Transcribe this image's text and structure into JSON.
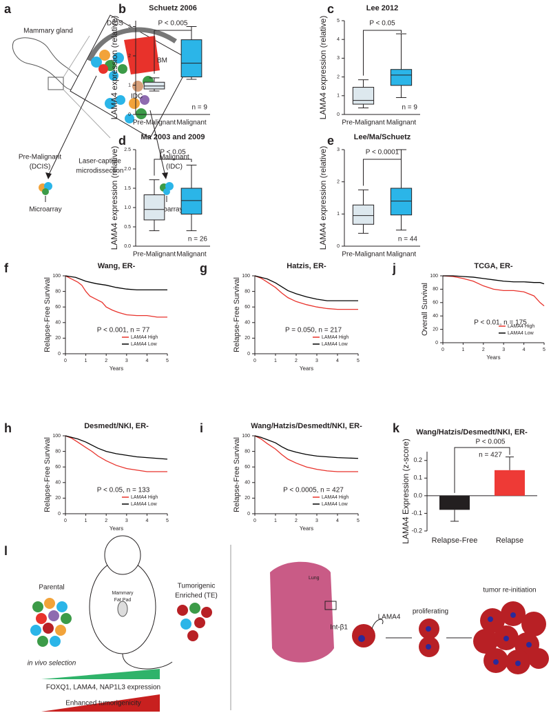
{
  "panel_labels": [
    "a",
    "b",
    "c",
    "d",
    "e",
    "f",
    "g",
    "j",
    "h",
    "i",
    "k",
    "l"
  ],
  "figure_a": {
    "labels": [
      "Mammary gland",
      "DCIS",
      "BM",
      "IDC",
      "Pre-Malignant",
      "(DCIS)",
      "Laser-capture",
      "microdissection",
      "Malignant",
      "(IDC)",
      "Microarray",
      "Microarray"
    ]
  },
  "figure_l": {
    "labels": [
      "Parental",
      "Mammary",
      "Fat Pad",
      "Tumorigenic",
      "Enriched (TE)",
      "in vivo selection",
      "FOXQ1, LAMA4, NAP1L3 expression",
      "Enhanced tumorigenicity",
      "Lung",
      "LAMA4",
      "Int-β1",
      "proliferating",
      "tumor re-initiation"
    ]
  },
  "chart_data": [
    {
      "type": "box",
      "title": "Schuetz 2006",
      "ylabel": "LAMA4 expression (relative)",
      "categories": [
        "Pre-Malignant",
        "Malignant"
      ],
      "boxes": [
        {
          "min": 0.8,
          "q1": 0.87,
          "median": 0.97,
          "q3": 1.1,
          "max": 1.25,
          "color": "#dde8ee"
        },
        {
          "min": 1.2,
          "q1": 1.28,
          "median": 1.75,
          "q3": 2.55,
          "max": 3.0,
          "color": "#2bb5e8"
        }
      ],
      "ylim": [
        0,
        3.2
      ],
      "yticks": [
        0,
        1,
        2,
        3
      ],
      "annotations": [
        "P < 0.005",
        "n = 9"
      ]
    },
    {
      "type": "box",
      "title": "Lee 2012",
      "ylabel": "LAMA4 expression (relative)",
      "categories": [
        "Pre-Malignant",
        "Malignant"
      ],
      "boxes": [
        {
          "min": 0.35,
          "q1": 0.55,
          "median": 0.75,
          "q3": 1.45,
          "max": 1.85,
          "color": "#dde8ee"
        },
        {
          "min": 0.9,
          "q1": 1.55,
          "median": 2.1,
          "q3": 2.4,
          "max": 4.3,
          "color": "#2bb5e8"
        }
      ],
      "ylim": [
        0,
        5
      ],
      "yticks": [
        0,
        1,
        2,
        3,
        4,
        5
      ],
      "annotations": [
        "P < 0.05",
        "n = 9"
      ]
    },
    {
      "type": "box",
      "title": "Ma 2003 and 2009",
      "ylabel": "LAMA4 expression (relative)",
      "categories": [
        "Pre-Malignant",
        "Malignant"
      ],
      "boxes": [
        {
          "min": 0.4,
          "q1": 0.68,
          "median": 0.95,
          "q3": 1.33,
          "max": 1.72,
          "color": "#dde8ee"
        },
        {
          "min": 0.4,
          "q1": 0.83,
          "median": 1.18,
          "q3": 1.5,
          "max": 2.1,
          "color": "#2bb5e8"
        }
      ],
      "ylim": [
        0,
        2.5
      ],
      "yticks": [
        {
          "value": 0,
          "label": "0.0"
        },
        0.5,
        {
          "value": 1,
          "label": "1.0"
        },
        1.5,
        {
          "value": 2,
          "label": "2.0"
        },
        2.5
      ],
      "annotations": [
        "P < 0.05",
        "n = 26"
      ]
    },
    {
      "type": "box",
      "title": "Lee/Ma/Schuetz",
      "ylabel": "LAMA4 expression (relative)",
      "categories": [
        "Pre-Malignant",
        "Malignant"
      ],
      "boxes": [
        {
          "min": 0.4,
          "q1": 0.68,
          "median": 0.95,
          "q3": 1.28,
          "max": 1.75,
          "color": "#dde8ee"
        },
        {
          "min": 0.5,
          "q1": 0.97,
          "median": 1.4,
          "q3": 1.8,
          "max": 3.0,
          "color": "#2bb5e8"
        }
      ],
      "ylim": [
        0,
        3
      ],
      "yticks": [
        0,
        1,
        2,
        3
      ],
      "annotations": [
        "P < 0.0001",
        "n = 44"
      ]
    },
    {
      "type": "line",
      "title": "Wang, ER-",
      "ylabel": "Relapse-Free Survival",
      "xlabel": "Years",
      "annotation": "P < 0.001, n = 77",
      "xlim": [
        0,
        5
      ],
      "xticks": [
        0,
        1,
        2,
        3,
        4,
        5
      ],
      "ylim": [
        0,
        100
      ],
      "yticks": [
        0,
        20,
        40,
        60,
        80,
        100
      ],
      "series": [
        {
          "name": "LAMA4 High",
          "color": "#e8322b",
          "x": [
            0,
            0.3,
            0.6,
            0.8,
            1.0,
            1.2,
            1.5,
            1.8,
            2.0,
            2.3,
            2.6,
            3.0,
            3.5,
            4.0,
            4.5,
            5.0
          ],
          "values": [
            100,
            96,
            92,
            88,
            80,
            74,
            70,
            66,
            60,
            56,
            53,
            50,
            49,
            49,
            47,
            47
          ]
        },
        {
          "name": "LAMA4 Low",
          "color": "#000000",
          "x": [
            0,
            0.5,
            1,
            1.5,
            2,
            2.5,
            3,
            3.5,
            4,
            5
          ],
          "values": [
            100,
            98,
            93,
            90,
            88,
            85,
            83,
            82,
            82,
            82
          ]
        }
      ]
    },
    {
      "type": "line",
      "title": "Hatzis, ER-",
      "ylabel": "Relapse-Free Survival",
      "xlabel": "Years",
      "annotation": "P = 0.050, n = 217",
      "xlim": [
        0,
        5
      ],
      "xticks": [
        0,
        1,
        2,
        3,
        4,
        5
      ],
      "ylim": [
        0,
        100
      ],
      "yticks": [
        0,
        20,
        40,
        60,
        80,
        100
      ],
      "series": [
        {
          "name": "LAMA4 High",
          "color": "#e8322b",
          "x": [
            0,
            0.3,
            0.6,
            1,
            1.3,
            1.6,
            2,
            2.5,
            3,
            3.5,
            4,
            5
          ],
          "values": [
            100,
            97,
            92,
            85,
            78,
            72,
            67,
            63,
            60,
            58,
            57,
            57
          ]
        },
        {
          "name": "LAMA4 Low",
          "color": "#000000",
          "x": [
            0,
            0.3,
            0.6,
            1,
            1.3,
            1.6,
            2,
            2.5,
            3,
            3.5,
            4,
            5
          ],
          "values": [
            100,
            98,
            96,
            91,
            86,
            81,
            77,
            73,
            70,
            68,
            68,
            68
          ]
        }
      ]
    },
    {
      "type": "line",
      "title": "TCGA, ER-",
      "ylabel": "Overall Survival",
      "xlabel": "Years",
      "annotation": "P < 0.01, n = 175",
      "xlim": [
        0,
        5
      ],
      "xticks": [
        0,
        1,
        2,
        3,
        4,
        5
      ],
      "ylim": [
        0,
        100
      ],
      "yticks": [
        0,
        20,
        40,
        60,
        80,
        100
      ],
      "series": [
        {
          "name": "LAMA4 High",
          "color": "#e8322b",
          "x": [
            0,
            0.5,
            1,
            1.5,
            2,
            2.5,
            3,
            3.5,
            4,
            4.5,
            4.8,
            5
          ],
          "values": [
            100,
            99,
            96,
            92,
            85,
            80,
            78,
            78,
            76,
            70,
            60,
            55
          ]
        },
        {
          "name": "LAMA4 Low",
          "color": "#000000",
          "x": [
            0,
            0.5,
            1,
            1.5,
            2,
            2.5,
            3,
            3.5,
            4,
            4.5,
            4.8,
            5
          ],
          "values": [
            100,
            100,
            99,
            98,
            96,
            94,
            92,
            91,
            91,
            90,
            90,
            88
          ]
        }
      ]
    },
    {
      "type": "line",
      "title": "Desmedt/NKI, ER-",
      "ylabel": "Relapse-Free Survival",
      "xlabel": "Years",
      "annotation": "P < 0.05, n = 133",
      "xlim": [
        0,
        5
      ],
      "xticks": [
        0,
        1,
        2,
        3,
        4,
        5
      ],
      "ylim": [
        0,
        100
      ],
      "yticks": [
        0,
        20,
        40,
        60,
        80,
        100
      ],
      "series": [
        {
          "name": "LAMA4 High",
          "color": "#e8322b",
          "x": [
            0,
            0.3,
            0.6,
            1,
            1.3,
            1.6,
            2,
            2.5,
            3,
            3.5,
            4,
            5
          ],
          "values": [
            100,
            97,
            92,
            85,
            80,
            74,
            68,
            62,
            58,
            56,
            54,
            54
          ]
        },
        {
          "name": "LAMA4 Low",
          "color": "#000000",
          "x": [
            0,
            0.3,
            0.6,
            1,
            1.3,
            1.6,
            2,
            2.5,
            3,
            3.5,
            4,
            5
          ],
          "values": [
            100,
            98,
            96,
            92,
            88,
            84,
            80,
            77,
            75,
            73,
            72,
            70
          ]
        }
      ]
    },
    {
      "type": "line",
      "title": "Wang/Hatzis/Desmedt/NKI, ER-",
      "ylabel": "Relapse-Free Survival",
      "xlabel": "Years",
      "annotation": "P < 0.0005, n = 427",
      "xlim": [
        0,
        5
      ],
      "xticks": [
        0,
        1,
        2,
        3,
        4,
        5
      ],
      "ylim": [
        0,
        100
      ],
      "yticks": [
        0,
        20,
        40,
        60,
        80,
        100
      ],
      "series": [
        {
          "name": "LAMA4 High",
          "color": "#e8322b",
          "x": [
            0,
            0.3,
            0.6,
            1,
            1.3,
            1.6,
            2,
            2.5,
            3,
            3.5,
            4,
            5
          ],
          "values": [
            100,
            96,
            90,
            83,
            76,
            70,
            65,
            60,
            57,
            55,
            54,
            54
          ]
        },
        {
          "name": "LAMA4 Low",
          "color": "#000000",
          "x": [
            0,
            0.3,
            0.6,
            1,
            1.3,
            1.6,
            2,
            2.5,
            3,
            3.5,
            4,
            5
          ],
          "values": [
            100,
            98,
            95,
            91,
            86,
            82,
            79,
            76,
            74,
            73,
            72,
            71
          ]
        }
      ]
    },
    {
      "type": "bar",
      "title": "Wang/Hatzis/Desmedt/NKI, ER-",
      "ylabel": "LAMA4 Expression (z-score)",
      "categories": [
        "Relapse-Free",
        "Relapse"
      ],
      "values": [
        -0.08,
        0.145
      ],
      "errors": [
        0.065,
        0.075
      ],
      "colors": [
        "#231f20",
        "#ee3a36"
      ],
      "ylim": [
        -0.2,
        0.25
      ],
      "yticks": [
        -0.2,
        -0.1,
        {
          "value": 0,
          "label": "0.0"
        },
        0.1,
        0.2
      ],
      "annotations": [
        "P < 0.005",
        "n = 427"
      ]
    }
  ]
}
